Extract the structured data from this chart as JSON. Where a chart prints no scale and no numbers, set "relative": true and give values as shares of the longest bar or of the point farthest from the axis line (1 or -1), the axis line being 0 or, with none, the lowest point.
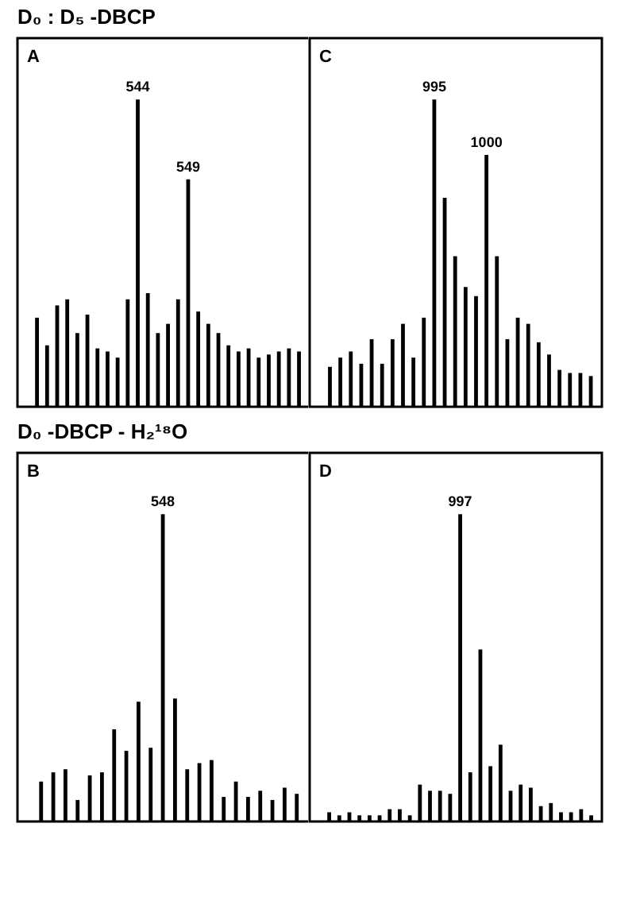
{
  "chart_data": [
    {
      "type": "bar",
      "title": "D₀ : D₅ -DBCP",
      "relative": true,
      "color": "#000000",
      "annotations": [
        "A",
        {
          "text": "544",
          "y": 1
        },
        {
          "text": "549",
          "y": 0.74
        }
      ],
      "categories": [
        null,
        null,
        null,
        null,
        null,
        null,
        null,
        null,
        null,
        null,
        null,
        null,
        null,
        null,
        null,
        null,
        null,
        null,
        null,
        null,
        null,
        null,
        null,
        null,
        null,
        null,
        null
      ],
      "values": [
        0.29,
        0.2,
        0.33,
        0.35,
        0.24,
        0.3,
        0.19,
        0.18,
        0.16,
        0.35,
        1,
        0.37,
        0.24,
        0.27,
        0.35,
        0.74,
        0.31,
        0.27,
        0.24,
        0.2,
        0.18,
        0.19,
        0.16,
        0.17,
        0.18,
        0.19,
        0.18
      ]
    },
    {
      "type": "bar",
      "relative": true,
      "color": "#000000",
      "annotations": [
        "C",
        {
          "text": "995",
          "y": 1
        },
        {
          "text": "1000",
          "y": 0.82
        }
      ],
      "categories": [
        null,
        null,
        null,
        null,
        null,
        null,
        null,
        null,
        null,
        null,
        null,
        null,
        null,
        null,
        null,
        null,
        null,
        null,
        null,
        null,
        null,
        null,
        null,
        null,
        null,
        null
      ],
      "values": [
        0.13,
        0.16,
        0.18,
        0.14,
        0.22,
        0.14,
        0.22,
        0.27,
        0.16,
        0.29,
        1,
        0.68,
        0.49,
        0.39,
        0.36,
        0.82,
        0.49,
        0.22,
        0.29,
        0.27,
        0.21,
        0.17,
        0.12,
        0.11,
        0.11,
        0.1
      ]
    },
    {
      "type": "bar",
      "title": "D₀ -DBCP - H₂¹⁸O",
      "relative": true,
      "color": "#000000",
      "annotations": [
        "B",
        {
          "text": "548",
          "y": 1
        }
      ],
      "categories": [
        null,
        null,
        null,
        null,
        null,
        null,
        null,
        null,
        null,
        null,
        null,
        null,
        null,
        null,
        null,
        null,
        null,
        null,
        null,
        null,
        null,
        null
      ],
      "values": [
        0.13,
        0.16,
        0.17,
        0.07,
        0.15,
        0.16,
        0.3,
        0.23,
        0.39,
        0.24,
        1,
        0.4,
        0.17,
        0.19,
        0.2,
        0.08,
        0.13,
        0.08,
        0.1,
        0.07,
        0.11,
        0.09
      ]
    },
    {
      "type": "bar",
      "relative": true,
      "color": "#000000",
      "annotations": [
        "D",
        {
          "text": "997",
          "y": 1
        }
      ],
      "categories": [
        null,
        null,
        null,
        null,
        null,
        null,
        null,
        null,
        null,
        null,
        null,
        null,
        null,
        null,
        null,
        null,
        null,
        null,
        null,
        null,
        null,
        null,
        null,
        null,
        null,
        null,
        null
      ],
      "values": [
        0.03,
        0.02,
        0.03,
        0.02,
        0.02,
        0.02,
        0.04,
        0.04,
        0.02,
        0.12,
        0.1,
        0.1,
        0.09,
        1,
        0.16,
        0.56,
        0.18,
        0.25,
        0.1,
        0.12,
        0.11,
        0.05,
        0.06,
        0.03,
        0.03,
        0.04,
        0.02
      ]
    }
  ]
}
